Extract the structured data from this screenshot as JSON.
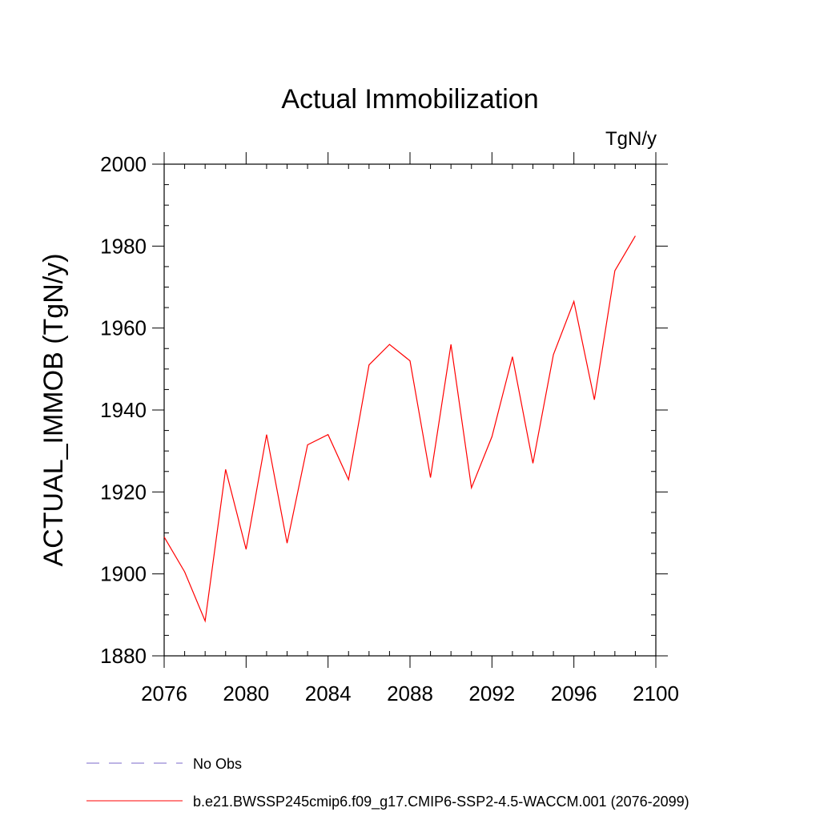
{
  "chart_data": {
    "type": "line",
    "title": "Actual Immobilization",
    "units_label": "TgN/y",
    "ylabel": "ACTUAL_IMMOB  (TgN/y)",
    "xlabel": "",
    "xlim": [
      2076,
      2100
    ],
    "ylim": [
      1880,
      2000
    ],
    "xticks": [
      2076,
      2080,
      2084,
      2088,
      2092,
      2096,
      2100
    ],
    "yticks": [
      1880,
      1900,
      1920,
      1940,
      1960,
      1980,
      2000
    ],
    "x": [
      2076,
      2077,
      2078,
      2079,
      2080,
      2081,
      2082,
      2083,
      2084,
      2085,
      2086,
      2087,
      2088,
      2089,
      2090,
      2091,
      2092,
      2093,
      2094,
      2095,
      2096,
      2097,
      2098,
      2099
    ],
    "series": [
      {
        "name": "b.e21.BWSSP245cmip6.f09_g17.CMIP6-SSP2-4.5-WACCM.001 (2076-2099)",
        "color": "#ff0000",
        "values": [
          1909,
          1900.5,
          1888.5,
          1925.5,
          1906,
          1934,
          1907.5,
          1931.5,
          1934,
          1923,
          1951,
          1956,
          1952,
          1923.5,
          1956,
          1921,
          1933.5,
          1953,
          1927,
          1953.5,
          1966.5,
          1942.5,
          1974,
          1982.5
        ]
      }
    ],
    "legend": [
      {
        "label": "No Obs",
        "color": "#7b68c8",
        "style": "dashed"
      },
      {
        "label": "b.e21.BWSSP245cmip6.f09_g17.CMIP6-SSP2-4.5-WACCM.001 (2076-2099)",
        "color": "#ff0000",
        "style": "solid"
      }
    ],
    "grid": false,
    "legend_position": "bottom-left"
  }
}
